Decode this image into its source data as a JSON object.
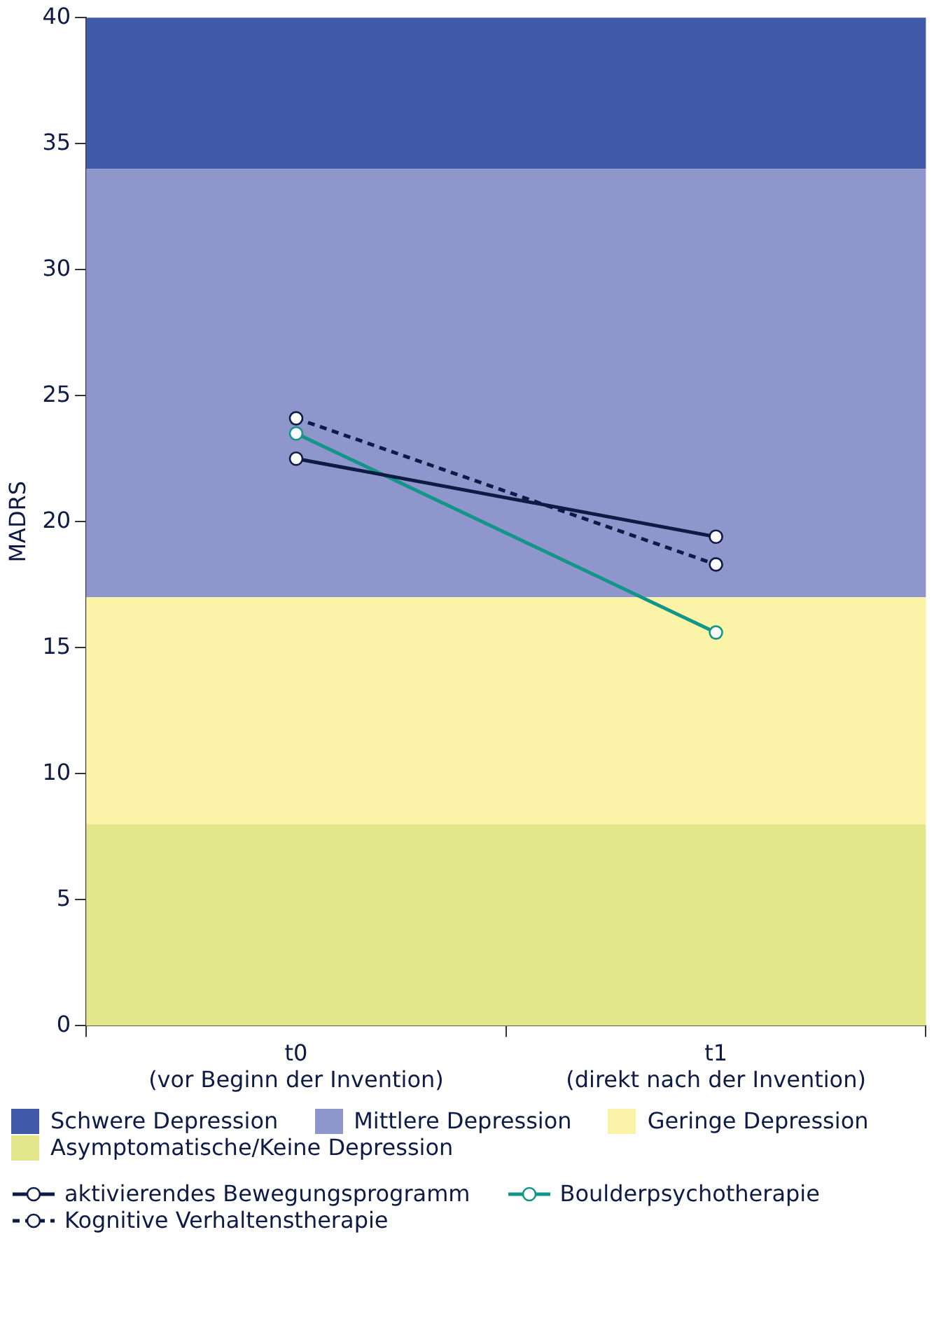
{
  "chart_data": {
    "type": "line",
    "ylabel": "MADRS",
    "categories": [
      "t0\n(vor Beginn der Invention)",
      "t1\n(direkt nach der Invention)"
    ],
    "series": [
      {
        "name": "aktivierendes Bewegungsprogramm",
        "color": "#0d1b45",
        "values": [
          22.5,
          19.4
        ],
        "line_style": "solid"
      },
      {
        "name": "Boulderpsychotherapie",
        "color": "#13958a",
        "values": [
          23.5,
          15.6
        ],
        "line_style": "solid"
      },
      {
        "name": "Kognitive Verhaltenstherapie",
        "color": "#0d1b45",
        "values": [
          24.1,
          18.3
        ],
        "line_style": "dashed"
      }
    ],
    "bands": [
      {
        "axis": "y",
        "from": 34,
        "to": 40,
        "label": "Schwere Depression",
        "color": "#3f5aa8"
      },
      {
        "axis": "y",
        "from": 17,
        "to": 34,
        "label": "Mittlere Depression",
        "color": "#8f96cb"
      },
      {
        "axis": "y",
        "from": 8,
        "to": 17,
        "label": "Geringe Depression",
        "color": "#fbf4a8"
      },
      {
        "axis": "y",
        "from": 0,
        "to": 8,
        "label": "Asymptomatische/Keine Depression",
        "color": "#e4e68c"
      }
    ],
    "ylim": [
      0,
      40
    ],
    "yticks": [
      0,
      5,
      10,
      15,
      20,
      25,
      30,
      35,
      40
    ],
    "grid": false,
    "legend": "bottom",
    "marker": "circle"
  }
}
